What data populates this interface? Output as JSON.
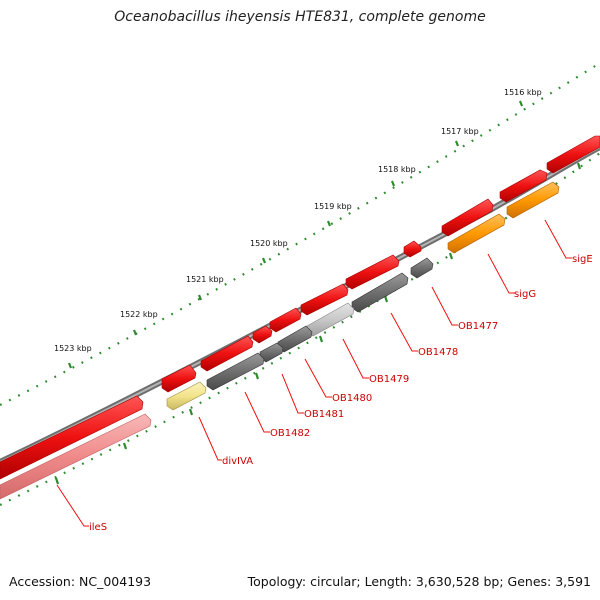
{
  "title": "Oceanobacillus iheyensis HTE831, complete genome",
  "footer": {
    "accession": "Accession: NC_004193",
    "summary": "Topology: circular; Length: 3,630,528 bp; Genes: 3,591"
  },
  "ruler": {
    "labels": [
      "1516 kbp",
      "1517 kbp",
      "1518 kbp",
      "1519 kbp",
      "1520 kbp",
      "1521 kbp",
      "1522 kbp",
      "1523 kbp"
    ]
  },
  "colors": {
    "backbone": "#8a8a8a",
    "tick": "#2e8b2e",
    "gene_red": "#ee1111",
    "gene_pink": "#f08a8a",
    "gene_orange": "#ff9900",
    "gene_yellow": "#f2e48a",
    "gene_gray": "#6f6f6f",
    "gene_lightgray": "#c8c8c8",
    "label": "#cc0000"
  },
  "genes": [
    {
      "name": "sigE"
    },
    {
      "name": "sigG"
    },
    {
      "name": "OB1477"
    },
    {
      "name": "OB1478"
    },
    {
      "name": "OB1479"
    },
    {
      "name": "OB1480"
    },
    {
      "name": "OB1481"
    },
    {
      "name": "OB1482"
    },
    {
      "name": "divIVA"
    },
    {
      "name": "ileS"
    }
  ]
}
